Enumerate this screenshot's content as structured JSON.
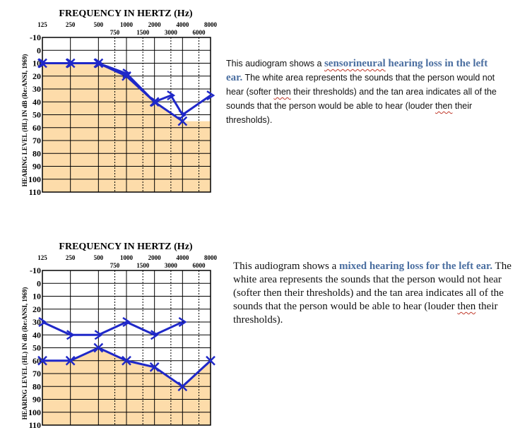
{
  "chart_data": [
    {
      "type": "line",
      "title": "FREQUENCY IN HERTZ (Hz)",
      "ylabel": "HEARING LEVEL (HL) IN dB (Re:ANSI, 1969)",
      "x_top_ticks": [
        "125",
        "250",
        "500",
        "1000",
        "2000",
        "4000",
        "8000"
      ],
      "x_mid_ticks": [
        "750",
        "1500",
        "3000",
        "6000"
      ],
      "y_ticks": [
        "-10",
        "0",
        "10",
        "20",
        "30",
        "40",
        "50",
        "60",
        "70",
        "80",
        "90",
        "100",
        "110"
      ],
      "ylim": [
        -10,
        110
      ],
      "y_inverted": true,
      "colors": {
        "area": "#fddcaa",
        "line": "#1f28c8"
      },
      "series": [
        {
          "marker": "x",
          "x": [
            125,
            250,
            500,
            1000,
            2000,
            4000
          ],
          "values": [
            10,
            10,
            10,
            20,
            40,
            55
          ]
        },
        {
          "marker": ">",
          "x": [
            125,
            250,
            500,
            1000,
            2000,
            3000,
            4000,
            8000
          ],
          "values": [
            10,
            10,
            10,
            18,
            40,
            35,
            50,
            35
          ]
        }
      ]
    },
    {
      "type": "line",
      "title": "FREQUENCY IN HERTZ (Hz)",
      "ylabel": "HEARING LEVEL (HL) IN dB (Re:ANSI, 1969)",
      "x_top_ticks": [
        "125",
        "250",
        "500",
        "1000",
        "2000",
        "4000",
        "8000"
      ],
      "x_mid_ticks": [
        "750",
        "1500",
        "3000",
        "6000"
      ],
      "y_ticks": [
        "-10",
        "0",
        "10",
        "20",
        "30",
        "40",
        "50",
        "60",
        "70",
        "80",
        "90",
        "100",
        "110"
      ],
      "ylim": [
        -10,
        110
      ],
      "y_inverted": true,
      "colors": {
        "area": "#fddcaa",
        "line": "#1f28c8"
      },
      "series": [
        {
          "marker": ">",
          "x": [
            125,
            250,
            500,
            1000,
            2000,
            4000
          ],
          "values": [
            30,
            40,
            40,
            30,
            40,
            30
          ]
        },
        {
          "marker": "x",
          "x": [
            125,
            250,
            500,
            1000,
            2000,
            4000,
            8000
          ],
          "values": [
            60,
            60,
            50,
            60,
            65,
            80,
            60
          ]
        }
      ]
    }
  ],
  "descriptions": [
    {
      "intro": "This audiogram shows a ",
      "emph_wavy": "sensorineural",
      "emph_rest": " hearing loss in the left ear.",
      "body_1": " The white area represents the sounds that the person would not hear (softer ",
      "then_1": "then",
      "body_2": " their thresholds) and the tan area indicates all of the sounds that the person would be able to hear (louder ",
      "then_2": "then",
      "body_3": " their thresholds)."
    },
    {
      "intro": "This audiogram shows a ",
      "emph": "mixed hearing loss for the left ear.",
      "body_1": " The white area represents the sounds that the person would not hear (softer then their thresholds) and the tan area indicates all of the sounds that the person would be able to hear (louder ",
      "then_2": "then",
      "body_3": " their thresholds)."
    }
  ]
}
